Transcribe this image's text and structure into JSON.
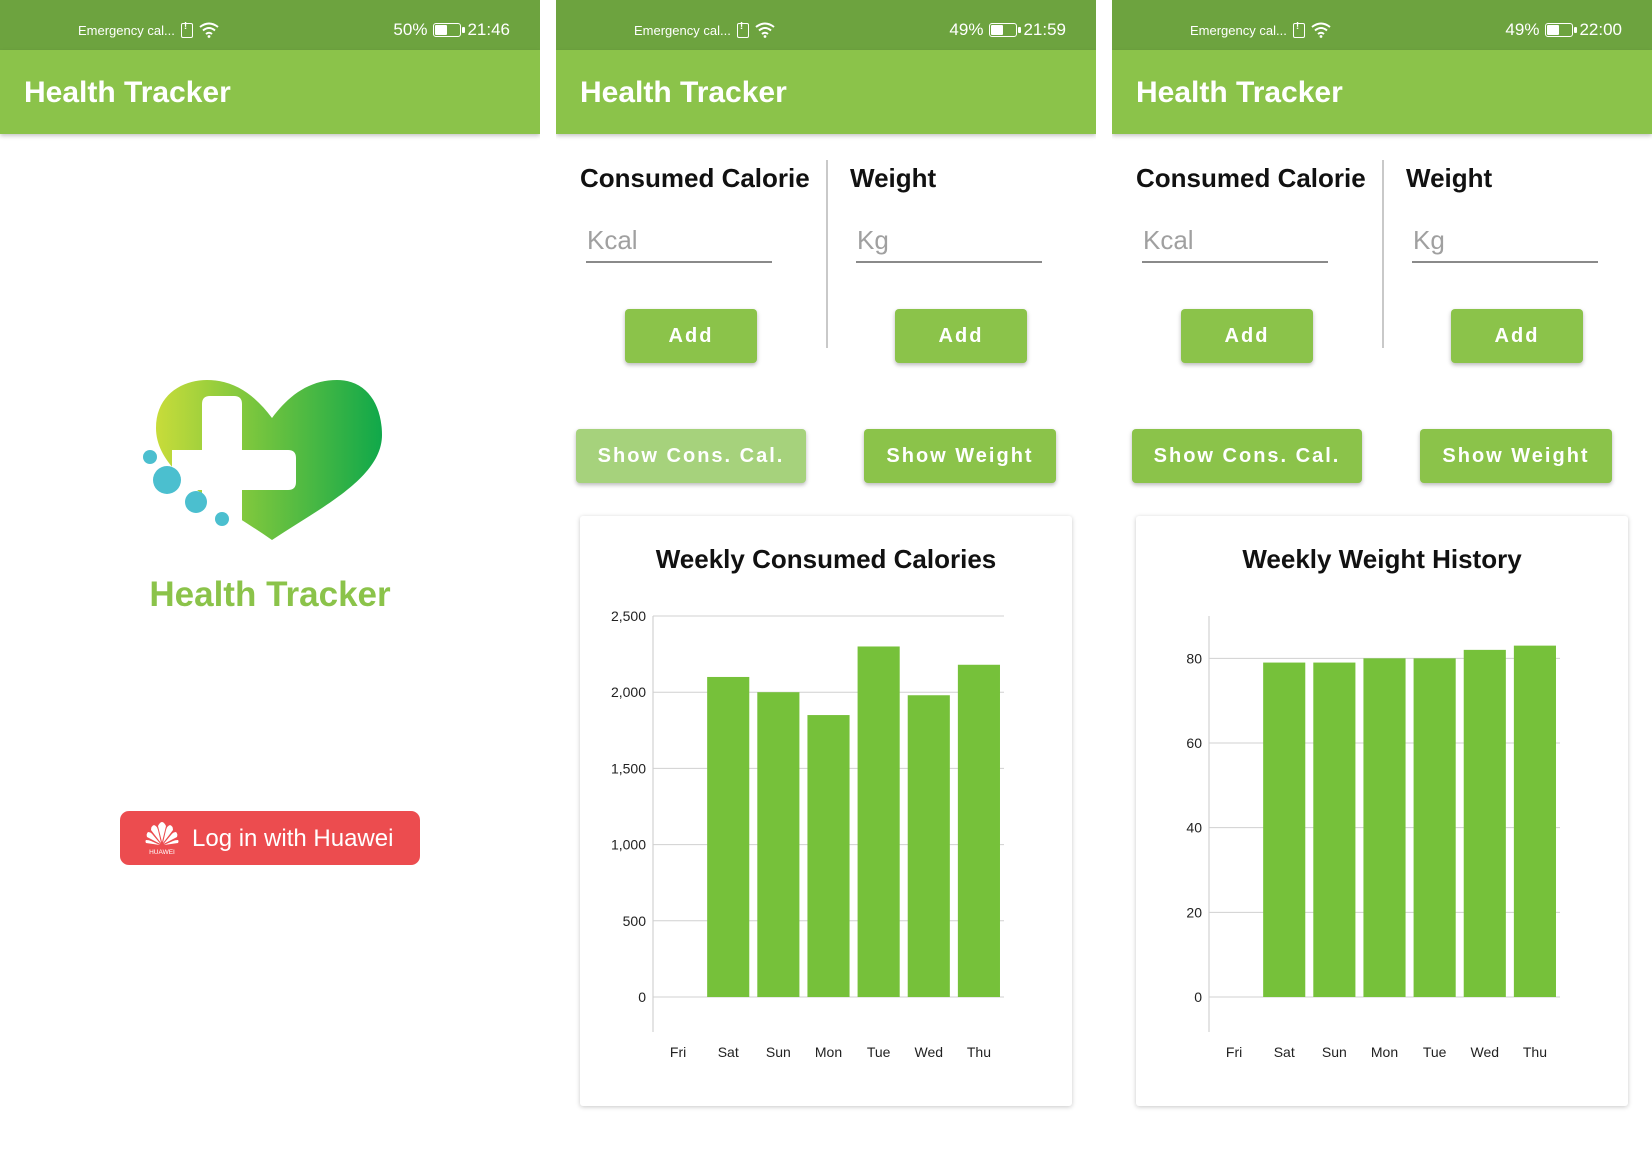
{
  "screens": [
    {
      "status": {
        "carrier": "Emergency cal...",
        "battery": "50%",
        "battery_level": 0.5,
        "time": "21:46"
      },
      "appbar": {
        "title": "Health Tracker"
      },
      "splash": {
        "brand": "Health Tracker",
        "login_label": "Log in with Huawei",
        "huawei_wordmark": "HUAWEI"
      }
    },
    {
      "status": {
        "carrier": "Emergency cal...",
        "battery": "49%",
        "battery_level": 0.49,
        "time": "21:59"
      },
      "appbar": {
        "title": "Health Tracker"
      },
      "calorie": {
        "title": "Consumed Calorie",
        "placeholder": "Kcal",
        "add_label": "Add"
      },
      "weight": {
        "title": "Weight",
        "placeholder": "Kg",
        "add_label": "Add"
      },
      "show_cal_label": "Show Cons. Cal.",
      "show_weight_label": "Show Weight"
    },
    {
      "status": {
        "carrier": "Emergency cal...",
        "battery": "49%",
        "battery_level": 0.49,
        "time": "22:00"
      },
      "appbar": {
        "title": "Health Tracker"
      },
      "calorie": {
        "title": "Consumed Calorie",
        "placeholder": "Kcal",
        "add_label": "Add"
      },
      "weight": {
        "title": "Weight",
        "placeholder": "Kg",
        "add_label": "Add"
      },
      "show_cal_label": "Show Cons. Cal.",
      "show_weight_label": "Show Weight"
    }
  ],
  "colors": {
    "accent": "#8bc34a",
    "status_bar": "#6da33f",
    "bar": "#76c13a",
    "login": "#ec4c4f",
    "pressed": "#a6d27c"
  },
  "chart_data": [
    {
      "type": "bar",
      "title": "Weekly Consumed Calories",
      "categories": [
        "Fri",
        "Sat",
        "Sun",
        "Mon",
        "Tue",
        "Wed",
        "Thu"
      ],
      "values": [
        null,
        2100,
        2000,
        1850,
        2300,
        1980,
        2180
      ],
      "ylim": [
        0,
        2500
      ],
      "yticks": [
        0,
        500,
        1000,
        1500,
        2000,
        2500
      ],
      "ytick_labels": [
        "0",
        "500",
        "1,000",
        "1,500",
        "2,000",
        "2,500"
      ],
      "grid": true,
      "legend": "none"
    },
    {
      "type": "bar",
      "title": "Weekly Weight History",
      "categories": [
        "Fri",
        "Sat",
        "Sun",
        "Mon",
        "Tue",
        "Wed",
        "Thu"
      ],
      "values": [
        null,
        79,
        79,
        80,
        80,
        82,
        83
      ],
      "ylim": [
        0,
        90
      ],
      "yticks": [
        0,
        20,
        40,
        60,
        80
      ],
      "ytick_labels": [
        "0",
        "20",
        "40",
        "60",
        "80"
      ],
      "grid": true,
      "legend": "none"
    }
  ]
}
